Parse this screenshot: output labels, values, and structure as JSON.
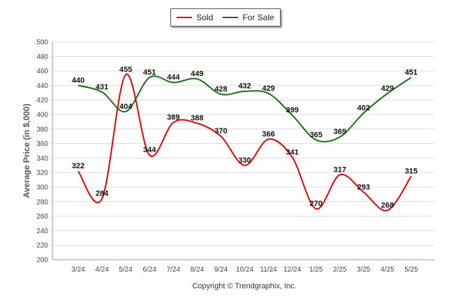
{
  "chart_data": {
    "type": "line",
    "categories": [
      "3/24",
      "4/24",
      "5/24",
      "6/24",
      "7/24",
      "8/24",
      "9/24",
      "10/24",
      "11/24",
      "12/24",
      "1/25",
      "2/25",
      "3/25",
      "4/25",
      "5/25"
    ],
    "series": [
      {
        "name": "Sold",
        "color": "#e00000",
        "values": [
          322,
          284,
          455,
          344,
          389,
          388,
          370,
          330,
          366,
          341,
          270,
          317,
          293,
          268,
          315
        ]
      },
      {
        "name": "For Sale",
        "color": "#1a6b1a",
        "values": [
          440,
          431,
          404,
          451,
          444,
          449,
          428,
          432,
          429,
          399,
          365,
          369,
          402,
          429,
          451
        ]
      }
    ],
    "ylabel": "Average Price (in $,000)",
    "xlabel": "",
    "ylim": [
      200,
      500
    ],
    "yticks": [
      200,
      220,
      240,
      260,
      280,
      300,
      320,
      340,
      360,
      380,
      400,
      420,
      440,
      460,
      480,
      500
    ],
    "grid": true,
    "legend_position": "top-center",
    "copyright": "Copyright © Trendgraphix, Inc."
  }
}
